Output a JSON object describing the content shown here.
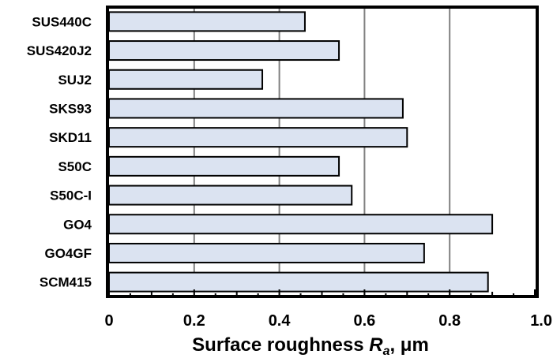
{
  "chart_data": {
    "type": "bar",
    "orientation": "horizontal",
    "categories": [
      "SUS440C",
      "SUS420J2",
      "SUJ2",
      "SKS93",
      "SKD11",
      "S50C",
      "S50C-I",
      "GO4",
      "GO4GF",
      "SCM415"
    ],
    "values": [
      0.46,
      0.54,
      0.36,
      0.69,
      0.7,
      0.54,
      0.57,
      0.9,
      0.74,
      0.89
    ],
    "xlim": [
      0,
      1.0
    ],
    "x_ticks": [
      "0",
      "0.2",
      "0.4",
      "0.6",
      "0.8",
      "1.0"
    ],
    "xlabel": {
      "prefix": "Surface roughness ",
      "symbol": "R",
      "subscript": "a",
      "suffix": ", μm"
    },
    "title": "",
    "ylabel": "",
    "grid": "vertical",
    "colors": {
      "bar_fill": "#dbe3f1",
      "bar_stroke": "#000000",
      "grid": "#808080",
      "frame": "#000000"
    }
  }
}
